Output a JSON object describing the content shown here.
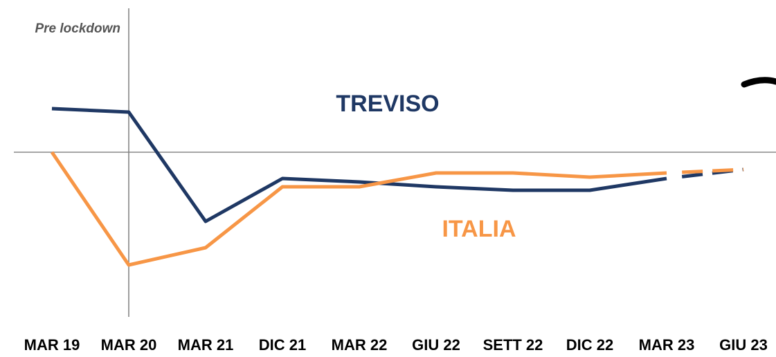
{
  "chart_data": {
    "type": "line",
    "categories": [
      "MAR 19",
      "MAR 20",
      "MAR 21",
      "DIC 21",
      "MAR 22",
      "GIU 22",
      "SETT 22",
      "DIC 22",
      "MAR 23",
      "GIU 23"
    ],
    "series": [
      {
        "name": "TREVISO",
        "color": "#1f3864",
        "values": [
          6.3,
          5.8,
          -10,
          -3.8,
          -4.3,
          -5,
          -5.5,
          -5.5,
          -3.8,
          -2.5
        ],
        "dashed_last_segment": true
      },
      {
        "name": "ITALIA",
        "color": "#f79646",
        "values": [
          0,
          -16.3,
          -13.8,
          -5,
          -5,
          -3,
          -3,
          -3.6,
          -3,
          -2.5
        ],
        "dashed_last_segment": true
      }
    ],
    "ylim": [
      -24,
      20.5
    ],
    "zero_line": true,
    "annotations": [
      {
        "text": "Pre lockdown",
        "x": "MAR 20"
      }
    ]
  }
}
